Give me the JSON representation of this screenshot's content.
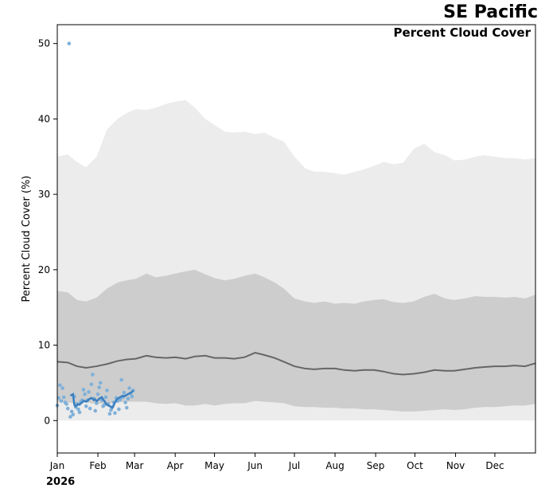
{
  "chart_data": {
    "type": "area",
    "title": "SE Pacific",
    "subtitle": "Percent Cloud Cover",
    "ylabel": "Percent Cloud Cover (%)",
    "xlabel": "",
    "year_label": "2026",
    "ylim": [
      -4.3,
      52.5
    ],
    "xlim": [
      0,
      365
    ],
    "yticks": [
      0,
      10,
      20,
      30,
      40,
      50
    ],
    "month_ticks": [
      {
        "label": "Jan",
        "day": 0
      },
      {
        "label": "Feb",
        "day": 31
      },
      {
        "label": "Mar",
        "day": 59
      },
      {
        "label": "Apr",
        "day": 90
      },
      {
        "label": "May",
        "day": 120
      },
      {
        "label": "Jun",
        "day": 151
      },
      {
        "label": "Jul",
        "day": 181
      },
      {
        "label": "Aug",
        "day": 212
      },
      {
        "label": "Sep",
        "day": 243
      },
      {
        "label": "Oct",
        "day": 273
      },
      {
        "label": "Nov",
        "day": 304
      },
      {
        "label": "Dec",
        "day": 334
      }
    ],
    "grid": false,
    "legend": "none",
    "colors": {
      "outer_band": "#ececec",
      "inner_band": "#cdcdcd",
      "median_line": "#666666",
      "observations": "#7fb0d8",
      "current_line": "#3a7fbf"
    },
    "climatology": {
      "days": [
        0,
        8,
        15,
        22,
        30,
        38,
        46,
        53,
        60,
        68,
        75,
        83,
        90,
        98,
        105,
        113,
        120,
        128,
        135,
        143,
        151,
        158,
        166,
        173,
        181,
        189,
        196,
        204,
        212,
        219,
        227,
        234,
        242,
        249,
        257,
        264,
        272,
        280,
        288,
        296,
        303,
        311,
        319,
        326,
        334,
        342,
        349,
        357,
        365
      ],
      "min": [
        0,
        0,
        0,
        0,
        0,
        0,
        0,
        0,
        0,
        0,
        0,
        0,
        0,
        0,
        0,
        0,
        0,
        0,
        0,
        0,
        0,
        0,
        0,
        0,
        0,
        0,
        0,
        0,
        0,
        0,
        0,
        0,
        0,
        0,
        0,
        0,
        0,
        0,
        0,
        0,
        0,
        0,
        0,
        0,
        0,
        0,
        0,
        0,
        0
      ],
      "p10": [
        2.5,
        2.4,
        2.3,
        2.4,
        2.2,
        2.3,
        2.4,
        2.5,
        2.5,
        2.5,
        2.3,
        2.2,
        2.3,
        2.0,
        2.0,
        2.2,
        2.0,
        2.2,
        2.3,
        2.3,
        2.6,
        2.5,
        2.4,
        2.3,
        1.9,
        1.8,
        1.8,
        1.7,
        1.7,
        1.6,
        1.6,
        1.5,
        1.5,
        1.4,
        1.3,
        1.2,
        1.2,
        1.3,
        1.4,
        1.5,
        1.4,
        1.5,
        1.7,
        1.8,
        1.8,
        1.9,
        2.0,
        2.0,
        2.2
      ],
      "p90": [
        17.2,
        17.0,
        16.0,
        15.8,
        16.3,
        17.5,
        18.3,
        18.6,
        18.8,
        19.5,
        19.0,
        19.2,
        19.5,
        19.8,
        20.0,
        19.4,
        18.9,
        18.6,
        18.8,
        19.2,
        19.5,
        19.0,
        18.3,
        17.5,
        16.2,
        15.8,
        15.6,
        15.8,
        15.5,
        15.6,
        15.5,
        15.8,
        16.0,
        16.1,
        15.7,
        15.6,
        15.8,
        16.4,
        16.8,
        16.2,
        16.0,
        16.2,
        16.5,
        16.4,
        16.4,
        16.3,
        16.4,
        16.2,
        16.7
      ],
      "max": [
        35.0,
        35.3,
        34.3,
        33.6,
        35.0,
        38.6,
        40.0,
        40.8,
        41.3,
        41.2,
        41.5,
        42.0,
        42.3,
        42.5,
        41.5,
        40.0,
        39.2,
        38.3,
        38.2,
        38.3,
        38.0,
        38.2,
        37.5,
        37.0,
        35.0,
        33.5,
        33.0,
        33.0,
        32.8,
        32.6,
        33.0,
        33.3,
        33.8,
        34.3,
        34.0,
        34.2,
        36.0,
        36.7,
        35.6,
        35.2,
        34.5,
        34.6,
        35.0,
        35.2,
        35.0,
        34.8,
        34.8,
        34.6,
        34.8
      ],
      "median": [
        7.8,
        7.7,
        7.2,
        7.0,
        7.2,
        7.5,
        7.9,
        8.1,
        8.2,
        8.6,
        8.4,
        8.3,
        8.4,
        8.2,
        8.5,
        8.6,
        8.3,
        8.3,
        8.2,
        8.4,
        9.0,
        8.7,
        8.3,
        7.8,
        7.2,
        6.9,
        6.8,
        6.9,
        6.9,
        6.7,
        6.6,
        6.7,
        6.7,
        6.5,
        6.2,
        6.1,
        6.2,
        6.4,
        6.7,
        6.6,
        6.6,
        6.8,
        7.0,
        7.1,
        7.2,
        7.2,
        7.3,
        7.2,
        7.6
      ]
    },
    "observations": {
      "days": [
        0,
        1,
        2,
        3,
        4,
        5,
        6,
        7,
        8,
        9,
        10,
        11,
        12,
        13,
        14,
        15,
        16,
        17,
        18,
        19,
        20,
        21,
        22,
        23,
        24,
        25,
        26,
        27,
        28,
        29,
        30,
        31,
        32,
        33,
        34,
        35,
        36,
        37,
        38,
        39,
        40,
        41,
        42,
        43,
        44,
        45,
        46,
        47,
        48,
        49,
        50,
        51,
        52,
        53,
        54,
        55,
        56,
        57,
        58
      ],
      "values": [
        2.0,
        3.0,
        4.7,
        2.6,
        4.3,
        3.1,
        2.4,
        2.2,
        1.6,
        50.0,
        0.5,
        1.2,
        0.8,
        3.2,
        1.8,
        2.2,
        1.5,
        1.1,
        2.5,
        2.7,
        4.1,
        3.5,
        1.9,
        2.7,
        3.8,
        1.6,
        4.8,
        6.1,
        2.9,
        1.3,
        2.3,
        3.5,
        4.4,
        5.0,
        2.7,
        1.9,
        2.1,
        3.1,
        4.0,
        2.2,
        0.9,
        1.4,
        1.8,
        2.4,
        1.0,
        3.0,
        2.6,
        1.5,
        2.8,
        5.4,
        3.1,
        3.7,
        2.4,
        1.7,
        2.9,
        4.3,
        3.6,
        3.2,
        4.0
      ]
    },
    "current_line": {
      "days": [
        10,
        11,
        12,
        13,
        14,
        15,
        16,
        17,
        18,
        19,
        20,
        21,
        22,
        23,
        24,
        25,
        26,
        27,
        28,
        29,
        30,
        31,
        32,
        33,
        34,
        35,
        36,
        37,
        38,
        39,
        40,
        41,
        42,
        43,
        44,
        45,
        46,
        47,
        48,
        49,
        50,
        51,
        52,
        53,
        54,
        55,
        56,
        57,
        58
      ],
      "values": [
        3.3,
        3.4,
        3.5,
        2.1,
        1.9,
        2.0,
        2.2,
        2.1,
        2.3,
        2.4,
        2.6,
        2.6,
        2.5,
        2.6,
        2.8,
        2.9,
        3.0,
        2.9,
        2.7,
        2.8,
        2.6,
        2.7,
        2.9,
        3.0,
        3.1,
        2.8,
        2.6,
        2.3,
        2.1,
        2.0,
        1.9,
        1.8,
        1.7,
        2.0,
        2.4,
        2.7,
        2.9,
        3.0,
        3.1,
        3.2,
        3.3,
        3.2,
        3.3,
        3.4,
        3.5,
        3.6,
        3.7,
        3.8,
        4.0
      ]
    }
  }
}
